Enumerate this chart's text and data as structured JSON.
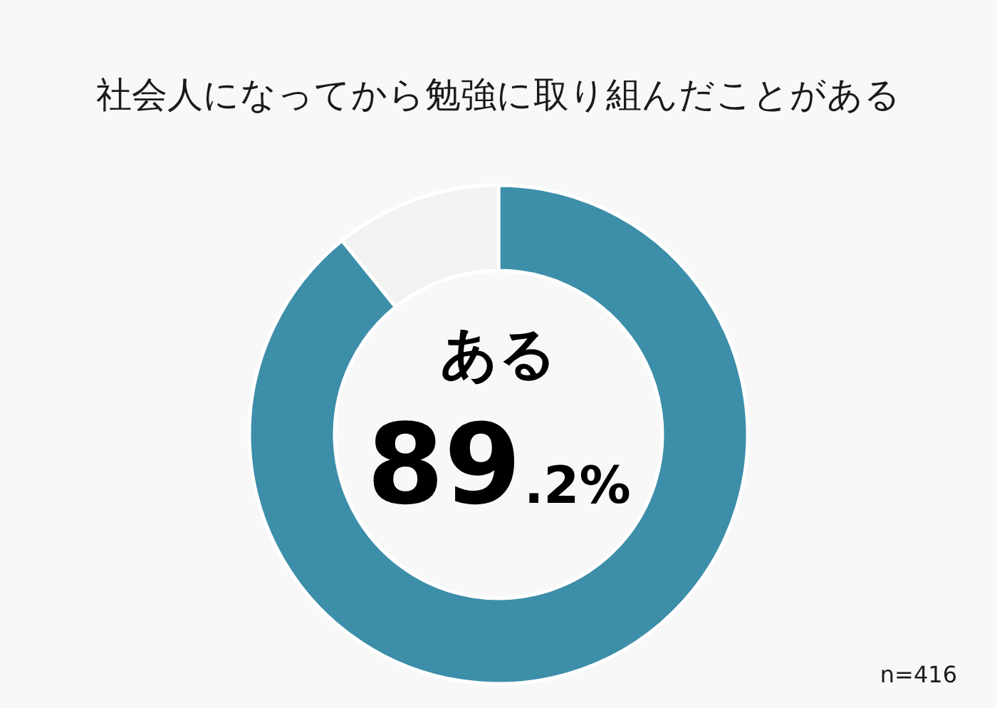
{
  "chart_data": {
    "type": "donut",
    "title": "社会人になってから勉強に取り組んだことがある",
    "categories": [
      "ある",
      null
    ],
    "values": [
      89.2,
      10.8
    ],
    "colors": [
      "#3d8ea9",
      "#f2f2f2"
    ],
    "value_labels": [
      "89.2%",
      null
    ],
    "annotations": [
      "n=416"
    ]
  }
}
